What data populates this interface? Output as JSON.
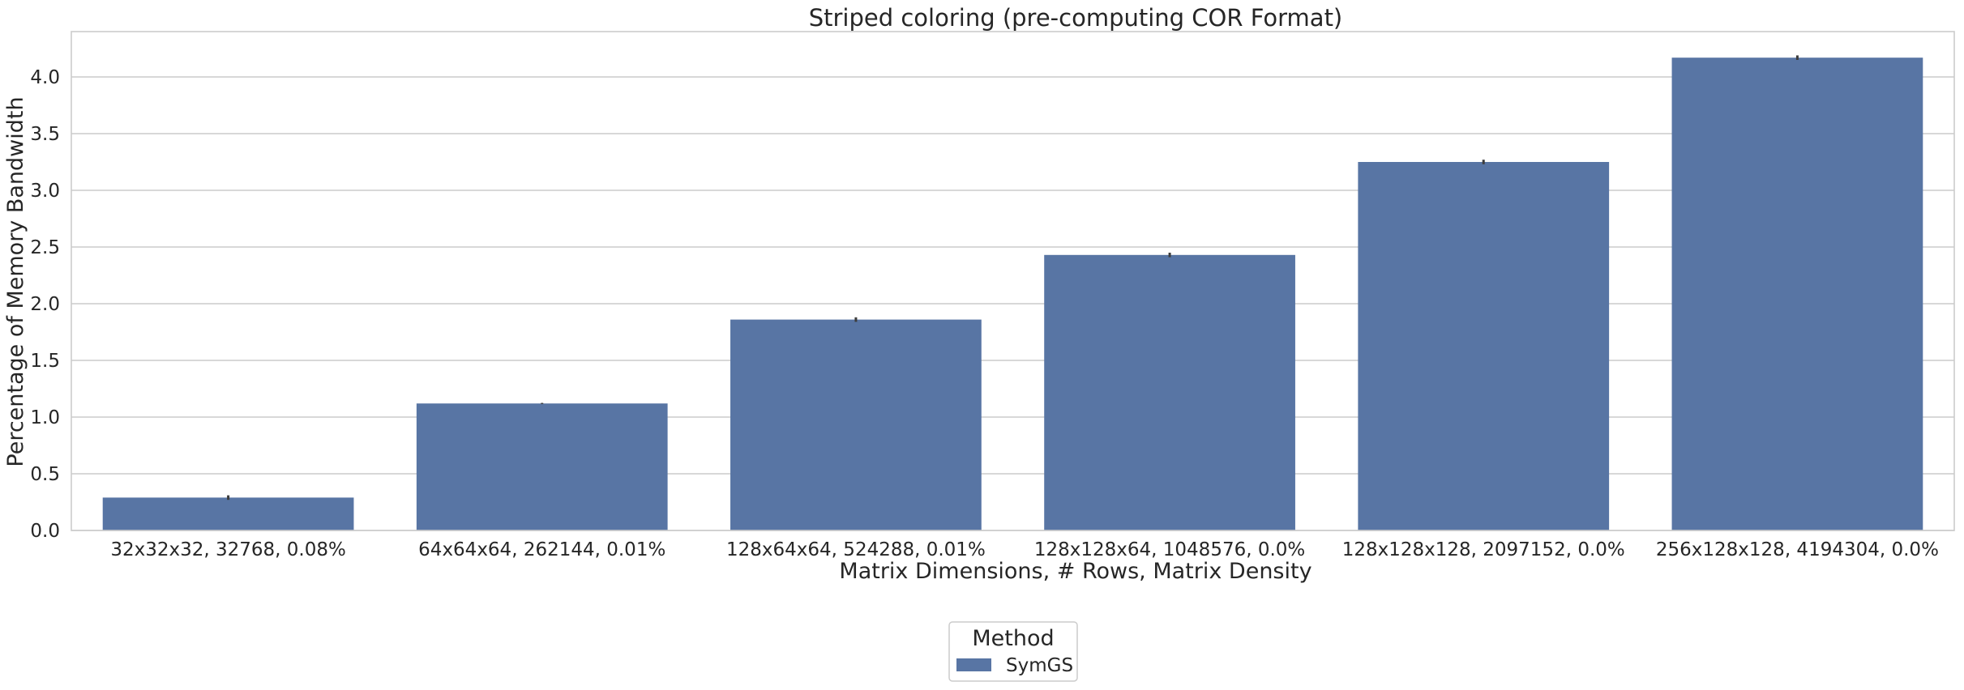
{
  "chart_data": {
    "type": "bar",
    "title": "Striped coloring (pre-computing COR Format)",
    "xlabel": "Matrix Dimensions, # Rows, Matrix Density",
    "ylabel": "Percentage of Memory Bandwidth",
    "categories": [
      "32x32x32, 32768, 0.08%",
      "64x64x64, 262144, 0.01%",
      "128x64x64, 524288, 0.01%",
      "128x128x64, 1048576, 0.0%",
      "128x128x128, 2097152, 0.0%",
      "256x128x128, 4194304, 0.0%"
    ],
    "series": [
      {
        "name": "SymGS",
        "color": "#5875a4",
        "values": [
          0.29,
          1.12,
          1.86,
          2.43,
          3.25,
          4.17
        ],
        "error": [
          0.02,
          0.005,
          0.02,
          0.02,
          0.02,
          0.02
        ]
      }
    ],
    "ylim": [
      0,
      4.4
    ],
    "yticks": [
      0.0,
      0.5,
      1.0,
      1.5,
      2.0,
      2.5,
      3.0,
      3.5,
      4.0
    ],
    "grid": true,
    "legend": {
      "title": "Method",
      "placement": "bottom-center, outside"
    }
  }
}
